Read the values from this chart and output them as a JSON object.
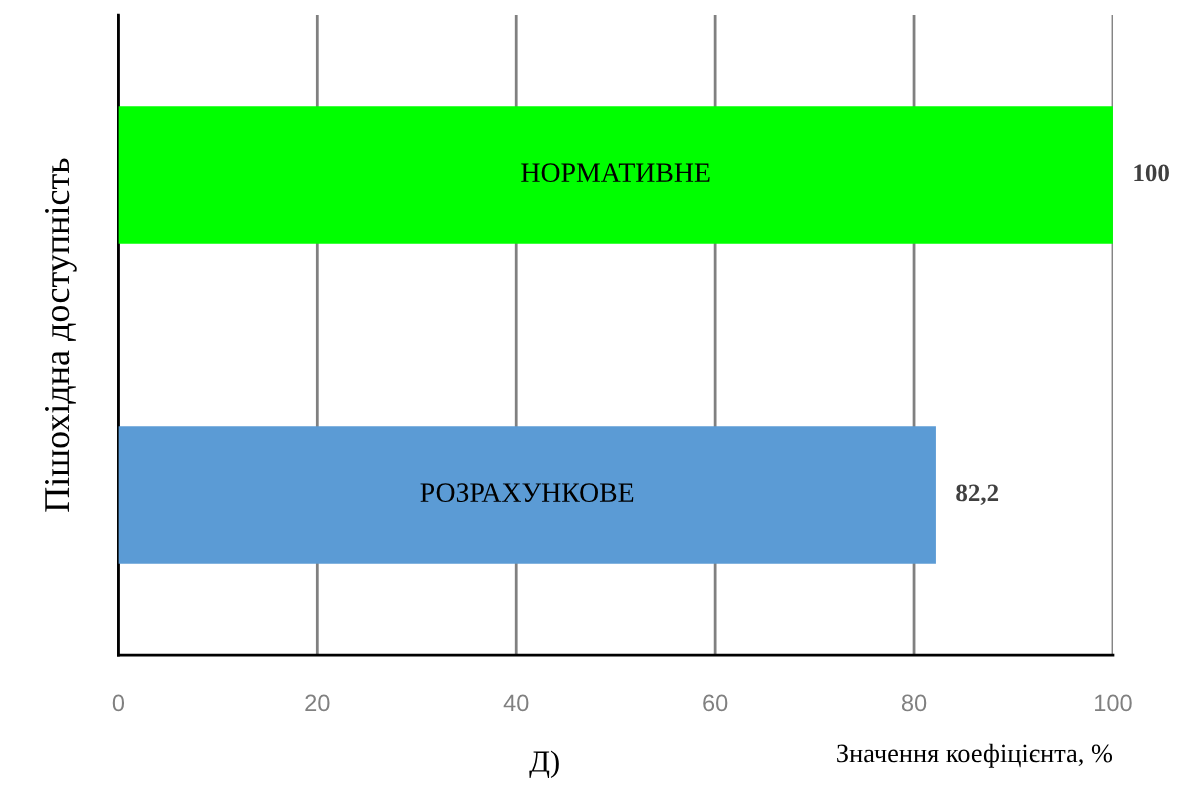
{
  "chart_data": {
    "type": "bar",
    "orientation": "horizontal",
    "categories": [
      "НОРМАТИВНЕ",
      "РОЗРАХУНКОВЕ"
    ],
    "values": [
      100,
      82.2
    ],
    "colors": [
      "#00ff00",
      "#5b9bd5"
    ],
    "value_labels": [
      "100",
      "82,2"
    ],
    "xlim": [
      0,
      100
    ],
    "xticks": [
      0,
      20,
      40,
      60,
      80,
      100
    ],
    "grid": "x",
    "ylabel": "Пішохідна доступність",
    "xlabel": "Значення коефіцієнта, %",
    "annotations": [
      "Д)"
    ]
  }
}
